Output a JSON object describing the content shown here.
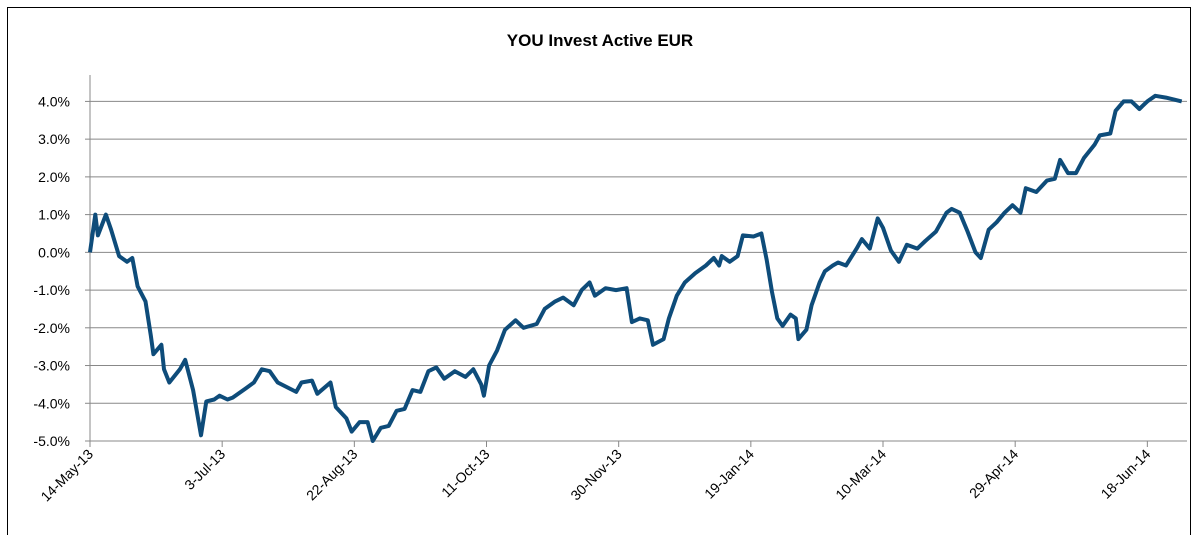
{
  "chart_data": {
    "type": "line",
    "title": "YOU Invest Active EUR",
    "x": [
      "2013-05-14",
      "2013-05-16",
      "2013-05-17",
      "2013-05-20",
      "2013-05-22",
      "2013-05-25",
      "2013-05-28",
      "2013-05-30",
      "2013-06-01",
      "2013-06-04",
      "2013-06-06",
      "2013-06-07",
      "2013-06-10",
      "2013-06-11",
      "2013-06-13",
      "2013-06-17",
      "2013-06-19",
      "2013-06-22",
      "2013-06-25",
      "2013-06-27",
      "2013-06-30",
      "2013-07-02",
      "2013-07-05",
      "2013-07-07",
      "2013-07-12",
      "2013-07-15",
      "2013-07-18",
      "2013-07-21",
      "2013-07-24",
      "2013-07-31",
      "2013-08-02",
      "2013-08-06",
      "2013-08-08",
      "2013-08-13",
      "2013-08-15",
      "2013-08-19",
      "2013-08-21",
      "2013-08-24",
      "2013-08-27",
      "2013-08-29",
      "2013-09-01",
      "2013-09-04",
      "2013-09-07",
      "2013-09-10",
      "2013-09-13",
      "2013-09-16",
      "2013-09-19",
      "2013-09-22",
      "2013-09-25",
      "2013-09-29",
      "2013-10-03",
      "2013-10-06",
      "2013-10-09",
      "2013-10-10",
      "2013-10-12",
      "2013-10-15",
      "2013-10-18",
      "2013-10-22",
      "2013-10-25",
      "2013-10-30",
      "2013-11-02",
      "2013-11-06",
      "2013-11-09",
      "2013-11-13",
      "2013-11-16",
      "2013-11-19",
      "2013-11-21",
      "2013-11-25",
      "2013-11-29",
      "2013-12-03",
      "2013-12-05",
      "2013-12-08",
      "2013-12-11",
      "2013-12-13",
      "2013-12-17",
      "2013-12-19",
      "2013-12-22",
      "2013-12-25",
      "2013-12-29",
      "2014-01-02",
      "2014-01-05",
      "2014-01-07",
      "2014-01-08",
      "2014-01-11",
      "2014-01-14",
      "2014-01-16",
      "2014-01-20",
      "2014-01-23",
      "2014-01-25",
      "2014-01-27",
      "2014-01-29",
      "2014-01-31",
      "2014-02-03",
      "2014-02-05",
      "2014-02-06",
      "2014-02-09",
      "2014-02-11",
      "2014-02-14",
      "2014-02-16",
      "2014-02-19",
      "2014-02-21",
      "2014-02-24",
      "2014-02-28",
      "2014-03-02",
      "2014-03-05",
      "2014-03-08",
      "2014-03-10",
      "2014-03-13",
      "2014-03-16",
      "2014-03-19",
      "2014-03-23",
      "2014-03-26",
      "2014-03-30",
      "2014-04-03",
      "2014-04-05",
      "2014-04-08",
      "2014-04-11",
      "2014-04-14",
      "2014-04-16",
      "2014-04-19",
      "2014-04-22",
      "2014-04-25",
      "2014-04-28",
      "2014-05-01",
      "2014-05-03",
      "2014-05-07",
      "2014-05-11",
      "2014-05-14",
      "2014-05-16",
      "2014-05-19",
      "2014-05-22",
      "2014-05-25",
      "2014-05-29",
      "2014-05-31",
      "2014-06-04",
      "2014-06-06",
      "2014-06-09",
      "2014-06-12",
      "2014-06-15",
      "2014-06-18",
      "2014-06-21",
      "2014-06-25",
      "2014-07-01"
    ],
    "series": [
      {
        "color": "#0e4c7a",
        "values": [
          0,
          1.0,
          0.45,
          1.0,
          0.6,
          -0.1,
          -0.25,
          -0.15,
          -0.9,
          -1.3,
          -2.2,
          -2.7,
          -2.45,
          -3.1,
          -3.45,
          -3.1,
          -2.85,
          -3.65,
          -4.85,
          -3.95,
          -3.9,
          -3.8,
          -3.9,
          -3.85,
          -3.6,
          -3.45,
          -3.1,
          -3.15,
          -3.45,
          -3.7,
          -3.45,
          -3.4,
          -3.75,
          -3.45,
          -4.1,
          -4.4,
          -4.75,
          -4.5,
          -4.5,
          -5.0,
          -4.65,
          -4.6,
          -4.2,
          -4.15,
          -3.65,
          -3.7,
          -3.15,
          -3.05,
          -3.35,
          -3.15,
          -3.3,
          -3.1,
          -3.5,
          -3.8,
          -3.0,
          -2.6,
          -2.05,
          -1.8,
          -2.0,
          -1.9,
          -1.5,
          -1.3,
          -1.2,
          -1.4,
          -1.0,
          -0.8,
          -1.15,
          -0.95,
          -1.0,
          -0.95,
          -1.85,
          -1.75,
          -1.8,
          -2.45,
          -2.3,
          -1.75,
          -1.15,
          -0.8,
          -0.55,
          -0.35,
          -0.15,
          -0.35,
          -0.1,
          -0.25,
          -0.1,
          0.45,
          0.42,
          0.5,
          -0.2,
          -1.05,
          -1.75,
          -1.95,
          -1.65,
          -1.75,
          -2.3,
          -2.05,
          -1.4,
          -0.8,
          -0.5,
          -0.35,
          -0.27,
          -0.35,
          0.1,
          0.35,
          0.1,
          0.9,
          0.65,
          0.05,
          -0.25,
          0.2,
          0.1,
          0.3,
          0.55,
          1.05,
          1.15,
          1.05,
          0.55,
          0.0,
          -0.15,
          0.6,
          0.8,
          1.05,
          1.25,
          1.05,
          1.7,
          1.6,
          1.9,
          1.95,
          2.45,
          2.1,
          2.1,
          2.5,
          2.85,
          3.1,
          3.15,
          3.75,
          4.0,
          4.0,
          3.8,
          4.0,
          4.15,
          4.1,
          4.0
        ]
      }
    ],
    "xlim": [
      "2013-05-14",
      "2014-07-03"
    ],
    "xticks": [
      {
        "value": "2013-05-14",
        "label": "14-May-13"
      },
      {
        "value": "2013-07-03",
        "label": "3-Jul-13"
      },
      {
        "value": "2013-08-22",
        "label": "22-Aug-13"
      },
      {
        "value": "2013-10-11",
        "label": "11-Oct-13"
      },
      {
        "value": "2013-11-30",
        "label": "30-Nov-13"
      },
      {
        "value": "2014-01-19",
        "label": "19-Jan-14"
      },
      {
        "value": "2014-03-10",
        "label": "10-Mar-14"
      },
      {
        "value": "2014-04-29",
        "label": "29-Apr-14"
      },
      {
        "value": "2014-06-18",
        "label": "18-Jun-14"
      }
    ],
    "ylim": [
      -5,
      4.7
    ],
    "yticks": [
      {
        "value": -5,
        "label": "-5.0%"
      },
      {
        "value": -4,
        "label": "-4.0%"
      },
      {
        "value": -3,
        "label": "-3.0%"
      },
      {
        "value": -2,
        "label": "-2.0%"
      },
      {
        "value": -1,
        "label": "-1.0%"
      },
      {
        "value": 0,
        "label": "0.0%"
      },
      {
        "value": 1,
        "label": "1.0%"
      },
      {
        "value": 2,
        "label": "2.0%"
      },
      {
        "value": 3,
        "label": "3.0%"
      },
      {
        "value": 4,
        "label": "4.0%"
      }
    ],
    "grid": true
  }
}
